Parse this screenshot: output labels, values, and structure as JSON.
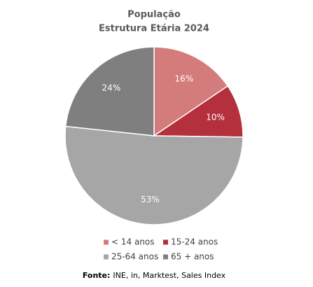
{
  "chart_data": {
    "type": "pie",
    "title": [
      "População",
      "Estrutura Etária 2024"
    ],
    "categories": [
      "< 14 anos",
      "15-24 anos",
      "25-64 anos",
      "65 + anos"
    ],
    "values": [
      16,
      10,
      53,
      24
    ],
    "value_labels": [
      "16%",
      "10%",
      "53%",
      "24%"
    ],
    "colors": [
      "#d47b7b",
      "#b5303d",
      "#a6a6a6",
      "#7f7f7f"
    ],
    "source_label": "Fonte:",
    "source": "INE, in, Marktest, Sales Index"
  }
}
